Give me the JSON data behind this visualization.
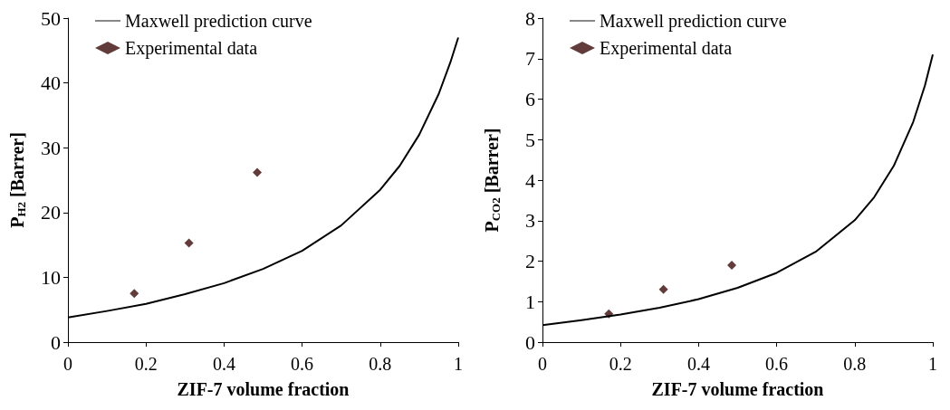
{
  "chart_data": [
    {
      "type": "line",
      "xlabel": "ZIF-7 volume fraction",
      "ylabel": "P$_{H2}$ [Barrer]",
      "xlim": [
        0,
        1
      ],
      "xticks": [
        0,
        0.2,
        0.4,
        0.6,
        0.8,
        1
      ],
      "ylim": [
        0,
        50
      ],
      "yticks": [
        0,
        10,
        20,
        30,
        40,
        50
      ],
      "legend": "top left",
      "series": [
        {
          "name": "Maxwell prediction curve",
          "marker": "none",
          "color": "#000000",
          "x": [
            0,
            0.1,
            0.2,
            0.3,
            0.4,
            0.5,
            0.6,
            0.7,
            0.8,
            0.85,
            0.9,
            0.95,
            0.98,
            1
          ],
          "values": [
            3.8,
            4.8,
            5.9,
            7.4,
            9.1,
            11.3,
            14.1,
            18.0,
            23.5,
            27.2,
            32.0,
            38.3,
            43.2,
            47
          ]
        },
        {
          "name": "Experimental data",
          "type": "scatter",
          "marker": "diamond",
          "color": "#3b0a0a",
          "x": [
            0.17,
            0.31,
            0.485
          ],
          "values": [
            7.5,
            15.3,
            26.2
          ]
        }
      ]
    },
    {
      "type": "line",
      "xlabel": "ZIF-7 volume fraction",
      "ylabel": "P$_{CO2}$ [Barrer]",
      "xlim": [
        0,
        1
      ],
      "xticks": [
        0,
        0.2,
        0.4,
        0.6,
        0.8,
        1
      ],
      "ylim": [
        0,
        8
      ],
      "yticks": [
        0,
        1,
        2,
        3,
        4,
        5,
        6,
        7,
        8
      ],
      "legend": "top left",
      "series": [
        {
          "name": "Maxwell prediction curve",
          "marker": "none",
          "color": "#000000",
          "x": [
            0,
            0.1,
            0.2,
            0.3,
            0.4,
            0.5,
            0.6,
            0.7,
            0.8,
            0.85,
            0.9,
            0.95,
            0.98,
            1
          ],
          "values": [
            0.42,
            0.54,
            0.68,
            0.85,
            1.06,
            1.34,
            1.71,
            2.23,
            3.01,
            3.58,
            4.35,
            5.44,
            6.34,
            7.1
          ]
        },
        {
          "name": "Experimental data",
          "type": "scatter",
          "marker": "diamond",
          "color": "#3b0a0a",
          "x": [
            0.17,
            0.31,
            0.485
          ],
          "values": [
            0.7,
            1.3,
            1.9
          ]
        }
      ]
    }
  ]
}
